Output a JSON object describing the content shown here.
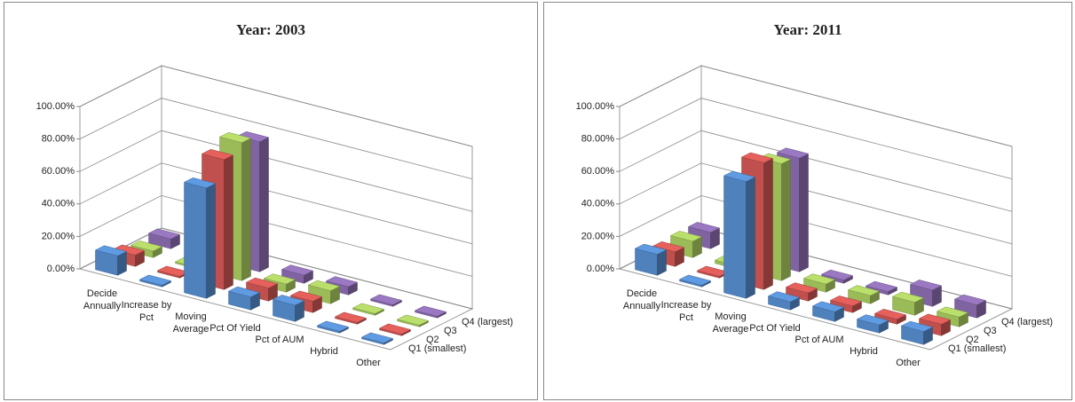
{
  "chart_data": [
    {
      "type": "bar3d",
      "title": "Year: 2003",
      "categories": [
        "Decide Annually",
        "Increase by Pct",
        "Moving Average",
        "Pct Of Yield",
        "Pct of AUM",
        "Hybrid",
        "Other"
      ],
      "series": [
        {
          "name": "Q1 (smallest)",
          "color": "#4f81bd",
          "values": [
            12,
            1,
            68,
            8,
            10,
            1,
            1
          ]
        },
        {
          "name": "Q2",
          "color": "#c0504d",
          "values": [
            7,
            1,
            80,
            8,
            7,
            1,
            1
          ]
        },
        {
          "name": "Q3",
          "color": "#9bbb59",
          "values": [
            4,
            1,
            85,
            5,
            8,
            1,
            1
          ]
        },
        {
          "name": "Q4 (largest)",
          "color": "#8064a2",
          "values": [
            6,
            1,
            80,
            5,
            5,
            1,
            1
          ]
        }
      ],
      "ylim": [
        0,
        100
      ],
      "yticks": [
        {
          "value": 0,
          "label": "0.00%"
        },
        {
          "value": 20,
          "label": "20.00%"
        },
        {
          "value": 40,
          "label": "40.00%"
        },
        {
          "value": 60,
          "label": "60.00%"
        },
        {
          "value": 80,
          "label": "80.00%"
        },
        {
          "value": 100,
          "label": "100.00%"
        }
      ],
      "grid": true
    },
    {
      "type": "bar3d",
      "title": "Year: 2011",
      "categories": [
        "Decide Annually",
        "Increase by Pct",
        "Moving Average",
        "Pct Of Yield",
        "Pct of AUM",
        "Hybrid",
        "Other"
      ],
      "series": [
        {
          "name": "Q1 (smallest)",
          "color": "#4f81bd",
          "values": [
            13,
            1,
            72,
            5,
            6,
            5,
            8
          ]
        },
        {
          "name": "Q2",
          "color": "#c0504d",
          "values": [
            9,
            1,
            78,
            5,
            4,
            3,
            7
          ]
        },
        {
          "name": "Q3",
          "color": "#9bbb59",
          "values": [
            10,
            2,
            72,
            5,
            5,
            8,
            6
          ]
        },
        {
          "name": "Q4 (largest)",
          "color": "#8064a2",
          "values": [
            10,
            1,
            70,
            2,
            2,
            10,
            8
          ]
        }
      ],
      "ylim": [
        0,
        100
      ],
      "yticks": [
        {
          "value": 0,
          "label": "0.00%"
        },
        {
          "value": 20,
          "label": "20.00%"
        },
        {
          "value": 40,
          "label": "40.00%"
        },
        {
          "value": 60,
          "label": "60.00%"
        },
        {
          "value": 80,
          "label": "80.00%"
        },
        {
          "value": 100,
          "label": "100.00%"
        }
      ],
      "grid": true
    }
  ]
}
